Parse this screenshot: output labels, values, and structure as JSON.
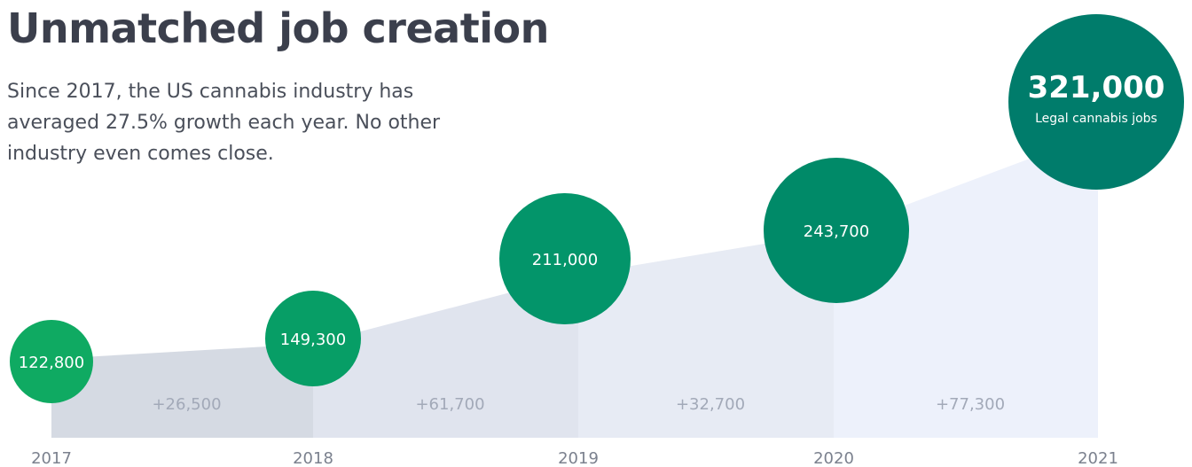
{
  "chart_data": {
    "type": "area",
    "title": "Unmatched job creation",
    "subtitle": "Since 2017, the US cannabis industry has averaged 27.5% growth each year. No other industry even comes close.",
    "x": [
      "2017",
      "2018",
      "2019",
      "2020",
      "2021"
    ],
    "series": [
      {
        "values": [
          122800,
          149300,
          211000,
          243700,
          321000
        ],
        "labels": [
          "122,800",
          "149,300",
          "211,000",
          "243,700",
          "321,000"
        ]
      }
    ],
    "increments": [
      "+26,500",
      "+61,700",
      "+32,700",
      "+77,300"
    ],
    "highlight": {
      "value": "321,000",
      "label": "Legal cannabis jobs"
    },
    "xlabel": "",
    "ylabel": "",
    "grid": false,
    "legend": "none",
    "colors": {
      "bubbles": [
        "#0faa62",
        "#079e66",
        "#03956a",
        "#008a68",
        "#007c6b"
      ],
      "bands": [
        "#d5dae3",
        "#e0e4ee",
        "#e7ebf4",
        "#edf1fb"
      ],
      "increment_text": "#a2a9b8",
      "year_text": "#7b818e"
    }
  }
}
